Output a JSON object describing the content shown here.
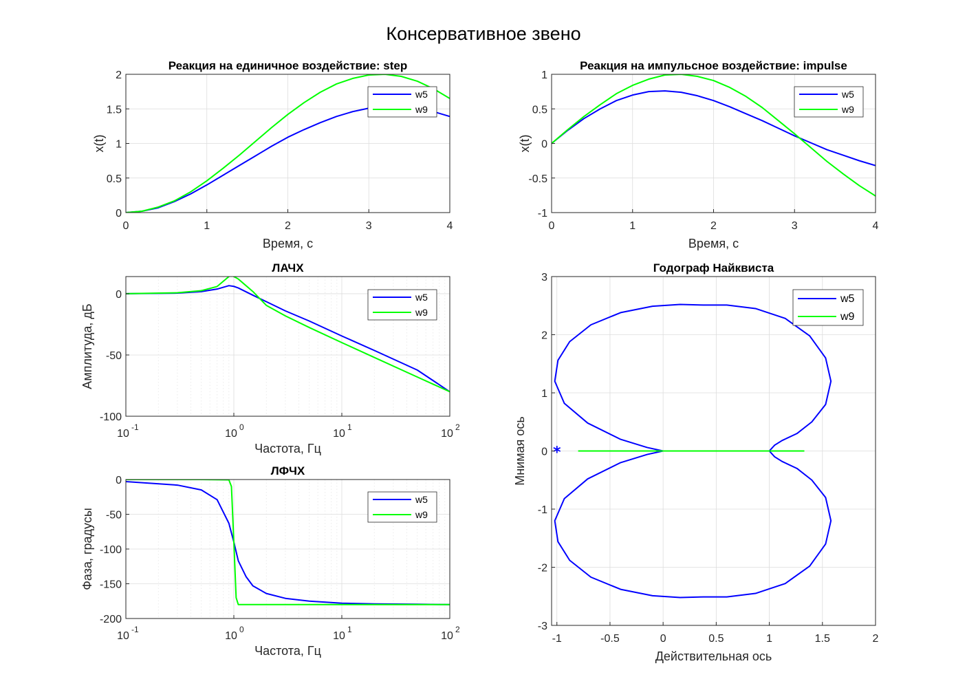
{
  "figure": {
    "title": "Консервативное звено"
  },
  "colors": {
    "w5": "#0000ff",
    "w9": "#00ff00"
  },
  "chart_data": [
    {
      "id": "step",
      "type": "line",
      "title": "Реакция на единичное воздействие: step",
      "xlabel": "Время, с",
      "ylabel": "x(t)",
      "xlim": [
        0,
        4
      ],
      "ylim": [
        0,
        2
      ],
      "xticks": [
        0,
        1,
        2,
        3,
        4
      ],
      "yticks": [
        0,
        0.5,
        1,
        1.5,
        2
      ],
      "xticklabels": [
        "0",
        "1",
        "2",
        "3",
        "4"
      ],
      "yticklabels": [
        "0",
        "0.5",
        "1",
        "1.5",
        "2"
      ],
      "grid": true,
      "legend": {
        "position": "top-right",
        "entries": [
          "w5",
          "w9"
        ]
      },
      "series": [
        {
          "name": "w5",
          "x": [
            0,
            0.2,
            0.4,
            0.6,
            0.8,
            1.0,
            1.2,
            1.4,
            1.6,
            1.8,
            2.0,
            2.2,
            2.4,
            2.6,
            2.8,
            3.0,
            3.2,
            3.4,
            3.6,
            3.8,
            4.0
          ],
          "y": [
            0,
            0.02,
            0.07,
            0.16,
            0.27,
            0.4,
            0.54,
            0.68,
            0.82,
            0.96,
            1.09,
            1.2,
            1.3,
            1.39,
            1.46,
            1.51,
            1.53,
            1.53,
            1.5,
            1.46,
            1.39
          ]
        },
        {
          "name": "w9",
          "x": [
            0,
            0.2,
            0.4,
            0.6,
            0.8,
            1.0,
            1.2,
            1.4,
            1.6,
            1.8,
            2.0,
            2.2,
            2.4,
            2.6,
            2.8,
            3.0,
            3.2,
            3.4,
            3.6,
            3.8,
            4.0
          ],
          "y": [
            0,
            0.02,
            0.08,
            0.17,
            0.3,
            0.46,
            0.64,
            0.83,
            1.03,
            1.23,
            1.42,
            1.59,
            1.74,
            1.86,
            1.94,
            1.99,
            2.0,
            1.97,
            1.9,
            1.79,
            1.65
          ]
        }
      ]
    },
    {
      "id": "impulse",
      "type": "line",
      "title": "Реакция на импульсное воздействие: impulse",
      "xlabel": "Время, с",
      "ylabel": "x(t)",
      "xlim": [
        0,
        4
      ],
      "ylim": [
        -1,
        1
      ],
      "xticks": [
        0,
        1,
        2,
        3,
        4
      ],
      "yticks": [
        -1,
        -0.5,
        0,
        0.5,
        1
      ],
      "xticklabels": [
        "0",
        "1",
        "2",
        "3",
        "4"
      ],
      "yticklabels": [
        "-1",
        "-0.5",
        "0",
        "0.5",
        "1"
      ],
      "grid": true,
      "legend": {
        "position": "top-right",
        "entries": [
          "w5",
          "w9"
        ]
      },
      "series": [
        {
          "name": "w5",
          "x": [
            0,
            0.2,
            0.4,
            0.6,
            0.8,
            1.0,
            1.2,
            1.4,
            1.6,
            1.8,
            2.0,
            2.2,
            2.4,
            2.6,
            2.8,
            3.0,
            3.2,
            3.4,
            3.6,
            3.8,
            4.0
          ],
          "y": [
            0,
            0.19,
            0.36,
            0.5,
            0.62,
            0.7,
            0.75,
            0.76,
            0.74,
            0.69,
            0.62,
            0.53,
            0.43,
            0.33,
            0.22,
            0.11,
            0.01,
            -0.09,
            -0.17,
            -0.25,
            -0.32
          ]
        },
        {
          "name": "w9",
          "x": [
            0,
            0.2,
            0.4,
            0.6,
            0.8,
            1.0,
            1.2,
            1.4,
            1.6,
            1.8,
            2.0,
            2.2,
            2.4,
            2.6,
            2.8,
            3.0,
            3.2,
            3.4,
            3.6,
            3.8,
            4.0
          ],
          "y": [
            0,
            0.2,
            0.39,
            0.56,
            0.72,
            0.84,
            0.93,
            0.99,
            1.0,
            0.97,
            0.91,
            0.81,
            0.68,
            0.52,
            0.33,
            0.14,
            -0.06,
            -0.26,
            -0.44,
            -0.61,
            -0.76
          ]
        }
      ]
    },
    {
      "id": "lachx",
      "type": "line",
      "title": "ЛАЧХ",
      "xlabel": "Частота, Гц",
      "ylabel": "Амплитуда, дБ",
      "xscale": "log",
      "xlim": [
        0.1,
        100
      ],
      "ylim": [
        -100,
        14
      ],
      "xticks": [
        0.1,
        1,
        10,
        100
      ],
      "xticklabels": [
        {
          "base": "10",
          "exp": "-1"
        },
        {
          "base": "10",
          "exp": "0"
        },
        {
          "base": "10",
          "exp": "1"
        },
        {
          "base": "10",
          "exp": "2"
        }
      ],
      "yticks": [
        -100,
        -50,
        0
      ],
      "yticklabels": [
        "-100",
        "-50",
        "0"
      ],
      "grid": true,
      "legend": {
        "position": "top-right",
        "entries": [
          "w5",
          "w9"
        ]
      },
      "series": [
        {
          "name": "w5",
          "x": [
            0.1,
            0.3,
            0.5,
            0.7,
            0.9,
            1.0,
            1.1,
            1.5,
            2,
            3,
            5,
            10,
            20,
            50,
            100
          ],
          "y": [
            0.0,
            0.5,
            1.7,
            3.8,
            6.6,
            6.0,
            4.7,
            -1.2,
            -6.5,
            -14,
            -22.3,
            -34.5,
            -46.3,
            -62.3,
            -80
          ]
        },
        {
          "name": "w9",
          "x": [
            0.1,
            0.3,
            0.5,
            0.7,
            0.9,
            0.95,
            1.05,
            1.1,
            1.5,
            2,
            3,
            5,
            10,
            20,
            50,
            100
          ],
          "y": [
            0.0,
            0.8,
            2.5,
            5.9,
            14,
            15.0,
            13.0,
            12,
            1.8,
            -9.5,
            -18.1,
            -27.6,
            -39.9,
            -52,
            -68,
            -80
          ]
        }
      ]
    },
    {
      "id": "lfchx",
      "type": "line",
      "title": "ЛФЧХ",
      "xlabel": "Частота, Гц",
      "ylabel": "Фаза, градусы",
      "xscale": "log",
      "xlim": [
        0.1,
        100
      ],
      "ylim": [
        -200,
        0
      ],
      "xticks": [
        0.1,
        1,
        10,
        100
      ],
      "xticklabels": [
        {
          "base": "10",
          "exp": "-1"
        },
        {
          "base": "10",
          "exp": "0"
        },
        {
          "base": "10",
          "exp": "1"
        },
        {
          "base": "10",
          "exp": "2"
        }
      ],
      "yticks": [
        -200,
        -150,
        -100,
        -50,
        0
      ],
      "yticklabels": [
        "-200",
        "-150",
        "-100",
        "-50",
        "0"
      ],
      "grid": true,
      "legend": {
        "position": "top-right",
        "entries": [
          "w5",
          "w9"
        ]
      },
      "series": [
        {
          "name": "w5",
          "x": [
            0.1,
            0.3,
            0.5,
            0.7,
            0.9,
            1.0,
            1.1,
            1.3,
            1.5,
            2,
            3,
            5,
            10,
            20,
            50,
            100
          ],
          "y": [
            -3,
            -8,
            -15,
            -29,
            -63,
            -90,
            -117,
            -140,
            -153,
            -164,
            -171,
            -175,
            -178,
            -179,
            -179.5,
            -180
          ]
        },
        {
          "name": "w9",
          "x": [
            0.1,
            0.5,
            0.9,
            0.95,
            1.0,
            1.05,
            1.1,
            1.5,
            10,
            100
          ],
          "y": [
            0,
            0,
            -0.5,
            -10,
            -90,
            -170,
            -180,
            -180,
            -180,
            -180
          ]
        }
      ]
    },
    {
      "id": "nyquist",
      "type": "line",
      "title": "Годограф Найквиста",
      "xlabel": "Действительная ось",
      "ylabel": "Мнимая ось",
      "xlim": [
        -1.05,
        2
      ],
      "ylim": [
        -3,
        3
      ],
      "xticks": [
        -1,
        -0.5,
        0,
        0.5,
        1,
        1.5,
        2
      ],
      "yticks": [
        -3,
        -2,
        -1,
        0,
        1,
        2,
        3
      ],
      "xticklabels": [
        "-1",
        "-0.5",
        "0",
        "0.5",
        "1",
        "1.5",
        "2"
      ],
      "yticklabels": [
        "-3",
        "-2",
        "-1",
        "0",
        "1",
        "2",
        "3"
      ],
      "grid": true,
      "legend": {
        "position": "top-right",
        "entries": [
          "w5",
          "w9"
        ]
      },
      "markers": [
        {
          "x": -1,
          "y": 0,
          "symbol": "*",
          "color": "#0000ff"
        }
      ],
      "series": [
        {
          "name": "w5",
          "x": [
            1.0,
            1.05,
            1.12,
            1.26,
            1.4,
            1.53,
            1.58,
            1.53,
            1.38,
            1.15,
            0.87,
            0.6,
            0.38,
            0.16,
            -0.1,
            -0.4,
            -0.68,
            -0.88,
            -0.99,
            -1.02,
            -0.93,
            -0.71,
            -0.4,
            -0.15,
            0.0,
            -0.15,
            -0.4,
            -0.71,
            -0.93,
            -1.02,
            -0.99,
            -0.88,
            -0.68,
            -0.4,
            -0.1,
            0.16,
            0.38,
            0.6,
            0.87,
            1.15,
            1.38,
            1.53,
            1.58,
            1.53,
            1.4,
            1.26,
            1.12,
            1.05,
            1.0
          ],
          "y": [
            0.0,
            0.1,
            0.18,
            0.3,
            0.5,
            0.8,
            1.2,
            1.6,
            1.98,
            2.28,
            2.45,
            2.51,
            2.51,
            2.52,
            2.49,
            2.38,
            2.17,
            1.88,
            1.56,
            1.2,
            0.82,
            0.48,
            0.2,
            0.06,
            0.0,
            -0.06,
            -0.2,
            -0.48,
            -0.82,
            -1.2,
            -1.56,
            -1.88,
            -2.17,
            -2.38,
            -2.49,
            -2.52,
            -2.51,
            -2.51,
            -2.45,
            -2.28,
            -1.98,
            -1.6,
            -1.2,
            -0.8,
            -0.5,
            -0.3,
            -0.18,
            -0.1,
            0.0
          ]
        },
        {
          "name": "w9",
          "x": [
            -0.8,
            1.33
          ],
          "y": [
            0,
            0
          ]
        }
      ]
    }
  ]
}
